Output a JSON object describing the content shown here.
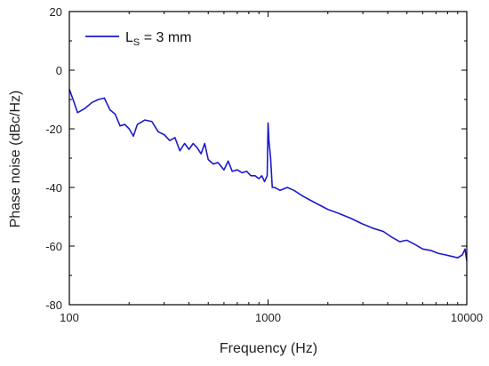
{
  "chart_data": {
    "type": "line",
    "xlabel": "Frequency (Hz)",
    "ylabel": "Phase noise (dBc/Hz)",
    "xscale": "log",
    "xlim": [
      100,
      10000
    ],
    "ylim": [
      -80,
      20
    ],
    "x_ticks": [
      100,
      1000,
      10000
    ],
    "x_tick_labels": [
      "100",
      "1000",
      "10000"
    ],
    "y_ticks": [
      -80,
      -60,
      -40,
      -20,
      0,
      20
    ],
    "y_tick_labels": [
      "-80",
      "-60",
      "-40",
      "-20",
      "0",
      "20"
    ],
    "grid": false,
    "legend_position": "top-left",
    "colors": {
      "series": "#1a1acc",
      "axis": "#000000"
    },
    "series": [
      {
        "legend_main": "L",
        "legend_sub": "S",
        "legend_rest": " = 3 mm",
        "x": [
          100,
          105,
          110,
          120,
          130,
          140,
          150,
          160,
          170,
          180,
          190,
          200,
          210,
          220,
          240,
          260,
          280,
          300,
          320,
          340,
          360,
          380,
          400,
          420,
          440,
          460,
          480,
          500,
          530,
          560,
          600,
          630,
          660,
          700,
          740,
          780,
          820,
          860,
          900,
          930,
          960,
          990,
          1000,
          1010,
          1030,
          1050,
          1080,
          1150,
          1250,
          1350,
          1500,
          1700,
          2000,
          2300,
          2600,
          3000,
          3400,
          3800,
          4200,
          4600,
          5000,
          5500,
          6000,
          6600,
          7200,
          7800,
          8400,
          9000,
          9500,
          9800,
          10000
        ],
        "y": [
          -6.5,
          -10.5,
          -14.5,
          -13,
          -11,
          -10,
          -9.5,
          -13.5,
          -15,
          -19,
          -18.5,
          -20,
          -22.5,
          -18.5,
          -17,
          -17.5,
          -21,
          -22,
          -24,
          -23,
          -27.5,
          -25,
          -27,
          -25,
          -26.5,
          -28.5,
          -25,
          -30.5,
          -32,
          -31.5,
          -34,
          -31,
          -34.5,
          -34,
          -35,
          -34.5,
          -36,
          -36,
          -37,
          -36,
          -38,
          -36,
          -18,
          -24,
          -30,
          -40,
          -40,
          -41,
          -40,
          -41,
          -43,
          -45,
          -47.5,
          -49,
          -50.5,
          -52.5,
          -54,
          -55,
          -57,
          -58.5,
          -58,
          -59.5,
          -61,
          -61.5,
          -62.5,
          -63,
          -63.5,
          -64,
          -63,
          -61,
          -65
        ]
      }
    ]
  }
}
